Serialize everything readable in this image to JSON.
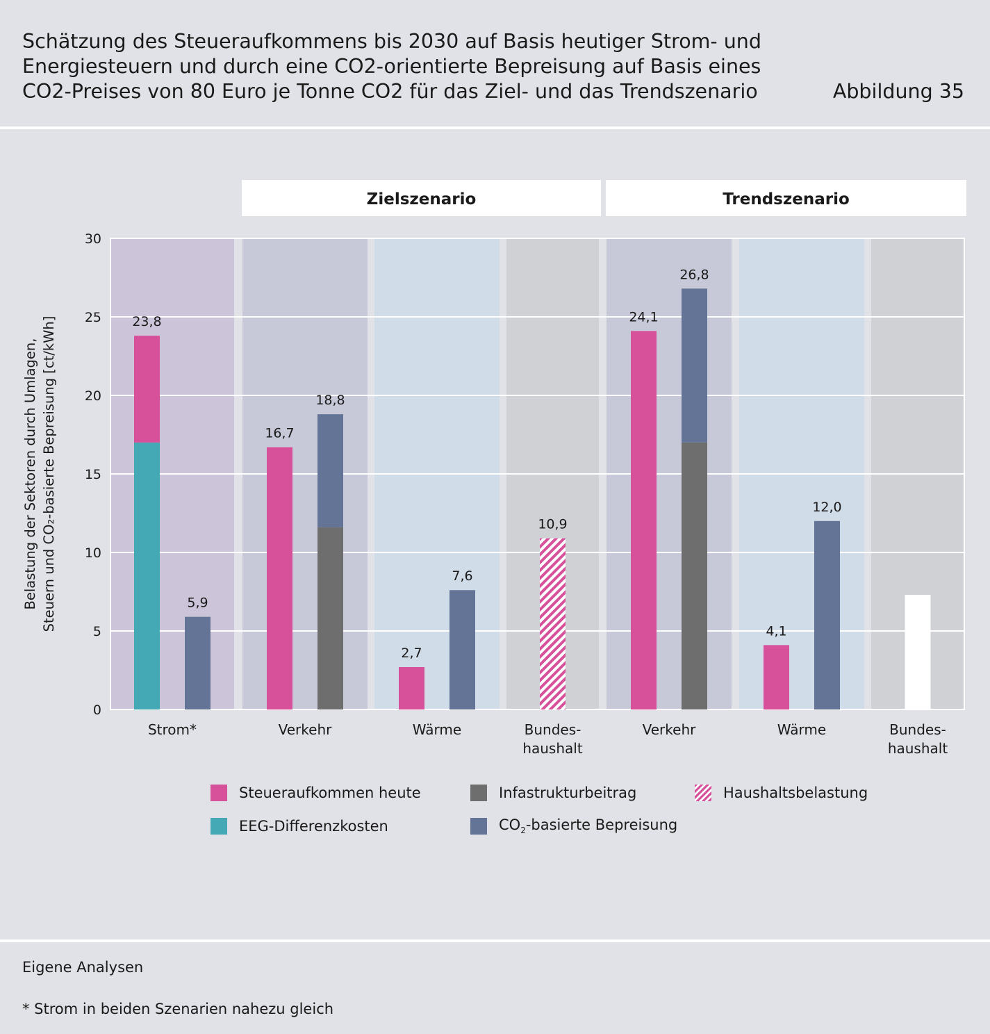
{
  "header": {
    "title_lines": [
      "Schätzung des Steueraufkommens bis 2030 auf Basis heutiger Strom- und",
      "Energiesteuern und durch eine CO2-orientierte Bepreisung auf Basis eines",
      "CO2-Preises von 80 Euro je Tonne CO2 für das Ziel- und das Trendszenario"
    ],
    "figure_label": "Abbildung 35"
  },
  "chart_data": {
    "type": "bar",
    "title": "Schätzung des Steueraufkommens bis 2030 auf Basis heutiger Strom- und Energiesteuern und durch eine CO2-orientierte Bepreisung auf Basis eines CO2-Preises von 80 Euro je Tonne CO2 für das Ziel- und das Trendszenario",
    "ylabel_lines": [
      "Belastung der Sektoren durch Umlagen,",
      "Steuern und CO₂-basierte Bepreisung [ct/kWh]"
    ],
    "ylim": [
      0,
      30
    ],
    "yticks": [
      0,
      5,
      10,
      15,
      20,
      25,
      30
    ],
    "grid": true,
    "legend_position": "bottom",
    "colors": {
      "steuer": "#d6509a",
      "eeg": "#44a9b4",
      "infra": "#6e6e6e",
      "co2": "#637496",
      "haushalt": "#d6509a",
      "white": "#ffffff"
    },
    "scenarios": [
      {
        "label": "Zielszenario",
        "first_category": 1,
        "last_category": 3
      },
      {
        "label": "Trendszenario",
        "first_category": 4,
        "last_category": 6
      }
    ],
    "categories": [
      {
        "label_lines": [
          "Strom*"
        ],
        "bg": "#ccc5d9",
        "bars": [
          {
            "segments": [
              {
                "series": "eeg",
                "value": 17.0
              },
              {
                "series": "steuer",
                "value": 6.8
              }
            ],
            "label": "23,8"
          },
          {
            "segments": [
              {
                "series": "co2",
                "value": 5.9
              }
            ],
            "label": "5,9"
          }
        ]
      },
      {
        "label_lines": [
          "Verkehr"
        ],
        "bg": "#c7c9d8",
        "bars": [
          {
            "segments": [
              {
                "series": "steuer",
                "value": 16.7
              }
            ],
            "label": "16,7"
          },
          {
            "segments": [
              {
                "series": "infra",
                "value": 11.6
              },
              {
                "series": "co2",
                "value": 7.2
              }
            ],
            "label": "18,8"
          }
        ]
      },
      {
        "label_lines": [
          "Wärme"
        ],
        "bg": "#d1dce9",
        "bars": [
          {
            "segments": [
              {
                "series": "steuer",
                "value": 2.7
              }
            ],
            "label": "2,7"
          },
          {
            "segments": [
              {
                "series": "co2",
                "value": 7.6
              }
            ],
            "label": "7,6"
          }
        ]
      },
      {
        "label_lines": [
          "Bundes-",
          "haushalt"
        ],
        "bg": "#d0d1d5",
        "bars": [
          {
            "segments": [
              {
                "series": "haushalt",
                "value": 10.9
              }
            ],
            "label": "10,9"
          }
        ]
      },
      {
        "label_lines": [
          "Verkehr"
        ],
        "bg": "#c7c9d8",
        "bars": [
          {
            "segments": [
              {
                "series": "steuer",
                "value": 24.1
              }
            ],
            "label": "24,1"
          },
          {
            "segments": [
              {
                "series": "infra",
                "value": 17.0
              },
              {
                "series": "co2",
                "value": 9.8
              }
            ],
            "label": "26,8"
          }
        ]
      },
      {
        "label_lines": [
          "Wärme"
        ],
        "bg": "#d1dce9",
        "bars": [
          {
            "segments": [
              {
                "series": "steuer",
                "value": 4.1
              }
            ],
            "label": "4,1"
          },
          {
            "segments": [
              {
                "series": "co2",
                "value": 12.0
              }
            ],
            "label": "12,0"
          }
        ]
      },
      {
        "label_lines": [
          "Bundes-",
          "haushalt"
        ],
        "bg": "#d0d1d5",
        "bars": [
          {
            "segments": [
              {
                "series": "white",
                "value": 7.3
              }
            ],
            "label": ""
          }
        ]
      }
    ],
    "legend": [
      {
        "key": "steuer",
        "text": "Steueraufkommen heute"
      },
      {
        "key": "infra",
        "text": "Infastrukturbeitrag"
      },
      {
        "key": "haushalt",
        "text": "Haushaltsbelastung",
        "hatched": true
      },
      {
        "key": "eeg",
        "text": "EEG-Differenzkosten"
      },
      {
        "key": "co2",
        "text_pre": "CO",
        "text_sub": "2",
        "text_post": "-basierte Bepreisung"
      }
    ]
  },
  "footer": {
    "source": "Eigene Analysen",
    "note": "* Strom in beiden Szenarien nahezu gleich"
  }
}
